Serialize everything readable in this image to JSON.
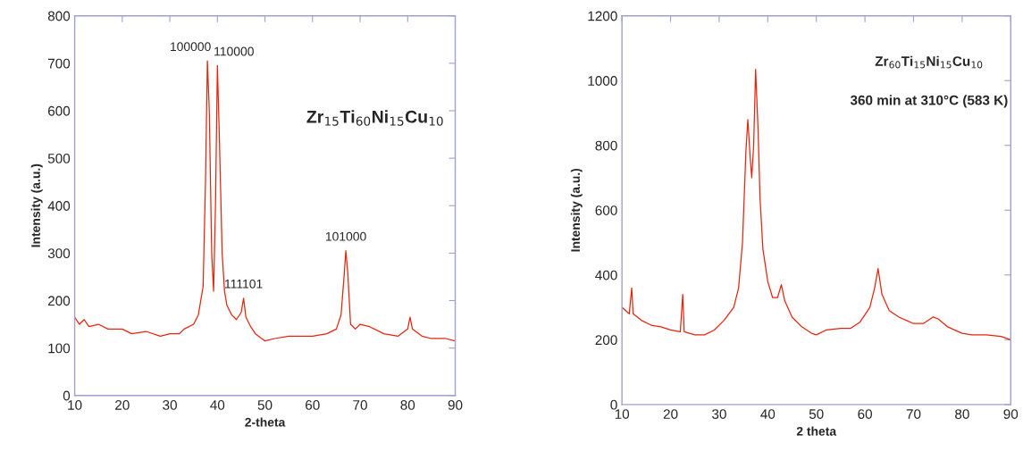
{
  "chart_data": [
    {
      "type": "line",
      "xlabel": "2-theta",
      "ylabel": "Intensity (a.u.)",
      "xlim": [
        10,
        90
      ],
      "ylim": [
        0,
        800
      ],
      "xticks": [
        10,
        20,
        30,
        40,
        50,
        60,
        70,
        80,
        90
      ],
      "yticks": [
        0,
        100,
        200,
        300,
        400,
        500,
        600,
        700,
        800
      ],
      "grid": false,
      "legend": false,
      "marker": "none",
      "line_style": "solid",
      "series": [
        {
          "color": "#e8240c",
          "x": [
            10,
            11,
            12,
            13,
            15,
            17,
            20,
            22,
            25,
            28,
            30,
            32,
            33,
            35,
            36,
            37,
            37.5,
            37.9,
            38.3,
            38.8,
            39.2,
            39.6,
            40,
            40.4,
            41,
            41.5,
            42,
            43,
            44,
            45,
            45.5,
            46,
            47,
            48,
            50,
            52,
            55,
            58,
            60,
            63,
            65,
            66,
            66.7,
            67,
            67.4,
            68,
            69,
            70,
            72,
            75,
            78,
            80,
            80.5,
            81,
            83,
            85,
            88,
            90
          ],
          "values": [
            165,
            150,
            160,
            145,
            150,
            140,
            140,
            130,
            135,
            125,
            130,
            130,
            140,
            150,
            170,
            230,
            450,
            705,
            600,
            300,
            220,
            400,
            695,
            550,
            300,
            220,
            190,
            170,
            160,
            175,
            205,
            165,
            145,
            130,
            115,
            120,
            125,
            125,
            125,
            130,
            140,
            170,
            260,
            305,
            260,
            150,
            140,
            150,
            145,
            130,
            125,
            140,
            165,
            140,
            125,
            120,
            120,
            115
          ]
        }
      ],
      "annotations": [
        {
          "text": "100000",
          "x": 37.9,
          "y": 705
        },
        {
          "text": "110000",
          "x": 40,
          "y": 695
        },
        {
          "text": "111101",
          "x": 45.5,
          "y": 205
        },
        {
          "text": "101000",
          "x": 67,
          "y": 305
        },
        "Zr$_{15}$Ti$_{60}$Ni$_{15}$Cu$_{10}$"
      ]
    },
    {
      "type": "line",
      "xlabel": "2 theta",
      "ylabel": "Intensity (a.u.)",
      "xlim": [
        10,
        90
      ],
      "ylim": [
        0,
        1200
      ],
      "xticks": [
        10,
        20,
        30,
        40,
        50,
        60,
        70,
        80,
        90
      ],
      "yticks": [
        0,
        200,
        400,
        600,
        800,
        1000,
        1200
      ],
      "grid": false,
      "legend": false,
      "marker": "none",
      "line_style": "solid",
      "series": [
        {
          "color": "#e8240c",
          "x": [
            10,
            11.5,
            12,
            12.3,
            14,
            16,
            18,
            20,
            22,
            22.5,
            22.8,
            25,
            27,
            29,
            31,
            33,
            34,
            34.8,
            35.5,
            35.9,
            36.4,
            36.7,
            37.1,
            37.5,
            38,
            38.4,
            39,
            40,
            41,
            42,
            42.8,
            43.5,
            45,
            47,
            49,
            50,
            52,
            55,
            57,
            59,
            61,
            62,
            62.7,
            63.5,
            65,
            67,
            70,
            72,
            74,
            75,
            77,
            80,
            82,
            85,
            88,
            90
          ],
          "values": [
            300,
            280,
            360,
            280,
            260,
            245,
            240,
            230,
            225,
            340,
            225,
            215,
            215,
            230,
            260,
            300,
            360,
            500,
            780,
            880,
            760,
            700,
            800,
            1035,
            850,
            640,
            480,
            380,
            330,
            330,
            370,
            320,
            270,
            240,
            220,
            215,
            230,
            235,
            235,
            255,
            300,
            360,
            420,
            340,
            290,
            270,
            250,
            250,
            270,
            265,
            240,
            220,
            215,
            215,
            210,
            200
          ]
        }
      ],
      "annotations": [
        "Zr$_{60}$Ti$_{15}$Ni$_{15}$Cu$_{10}$",
        "360 min at 310°C (583 K)"
      ]
    }
  ]
}
